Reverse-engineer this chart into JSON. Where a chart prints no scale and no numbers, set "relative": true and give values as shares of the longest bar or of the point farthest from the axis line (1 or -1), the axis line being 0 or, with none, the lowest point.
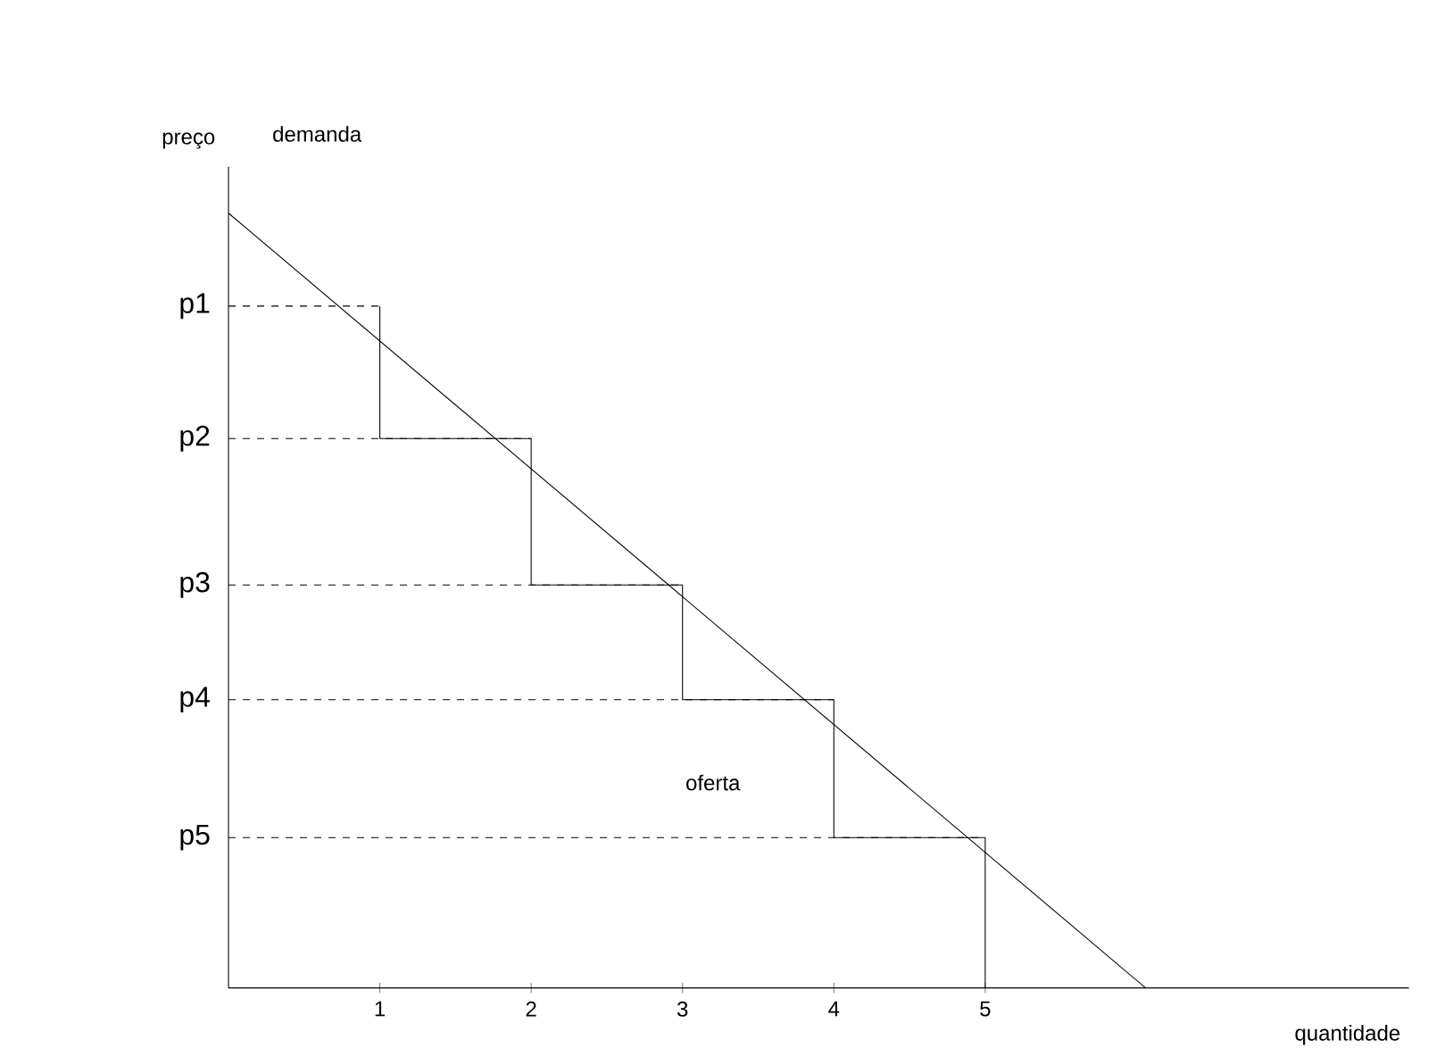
{
  "chart_data": {
    "type": "line",
    "relative": true,
    "xlabel": "quantidade",
    "ylabel": "preço",
    "annotations": [
      "demanda",
      "oferta"
    ],
    "xlim": [
      0,
      7.8
    ],
    "xticks": [
      1,
      2,
      3,
      4,
      5
    ],
    "tick_labels": "x",
    "series": [
      {
        "color": "#000000",
        "line_style": "solid",
        "x": [
          0,
          6.06
        ],
        "values": [
          1,
          0
        ]
      },
      {
        "color": "#000000",
        "line_style": "solid",
        "x": [
          1,
          1,
          2,
          2,
          3,
          3,
          4,
          4,
          5,
          5
        ],
        "values": [
          0.88,
          0.709,
          0.709,
          0.52,
          0.52,
          0.372,
          0.372,
          0.194,
          0.194,
          0
        ]
      },
      {
        "name": "p1",
        "color": "#000000",
        "line_style": "dashed",
        "x": [
          0,
          1
        ],
        "values": [
          0.88,
          0.88
        ]
      },
      {
        "name": "p2",
        "color": "#000000",
        "line_style": "dashed",
        "x": [
          0,
          2
        ],
        "values": [
          0.709,
          0.709
        ]
      },
      {
        "name": "p3",
        "color": "#000000",
        "line_style": "dashed",
        "x": [
          0,
          3
        ],
        "values": [
          0.52,
          0.52
        ]
      },
      {
        "name": "p4",
        "color": "#000000",
        "line_style": "dashed",
        "x": [
          0,
          4
        ],
        "values": [
          0.372,
          0.372
        ]
      },
      {
        "name": "p5",
        "color": "#000000",
        "line_style": "dashed",
        "x": [
          0,
          5
        ],
        "values": [
          0.194,
          0.194
        ]
      }
    ]
  }
}
